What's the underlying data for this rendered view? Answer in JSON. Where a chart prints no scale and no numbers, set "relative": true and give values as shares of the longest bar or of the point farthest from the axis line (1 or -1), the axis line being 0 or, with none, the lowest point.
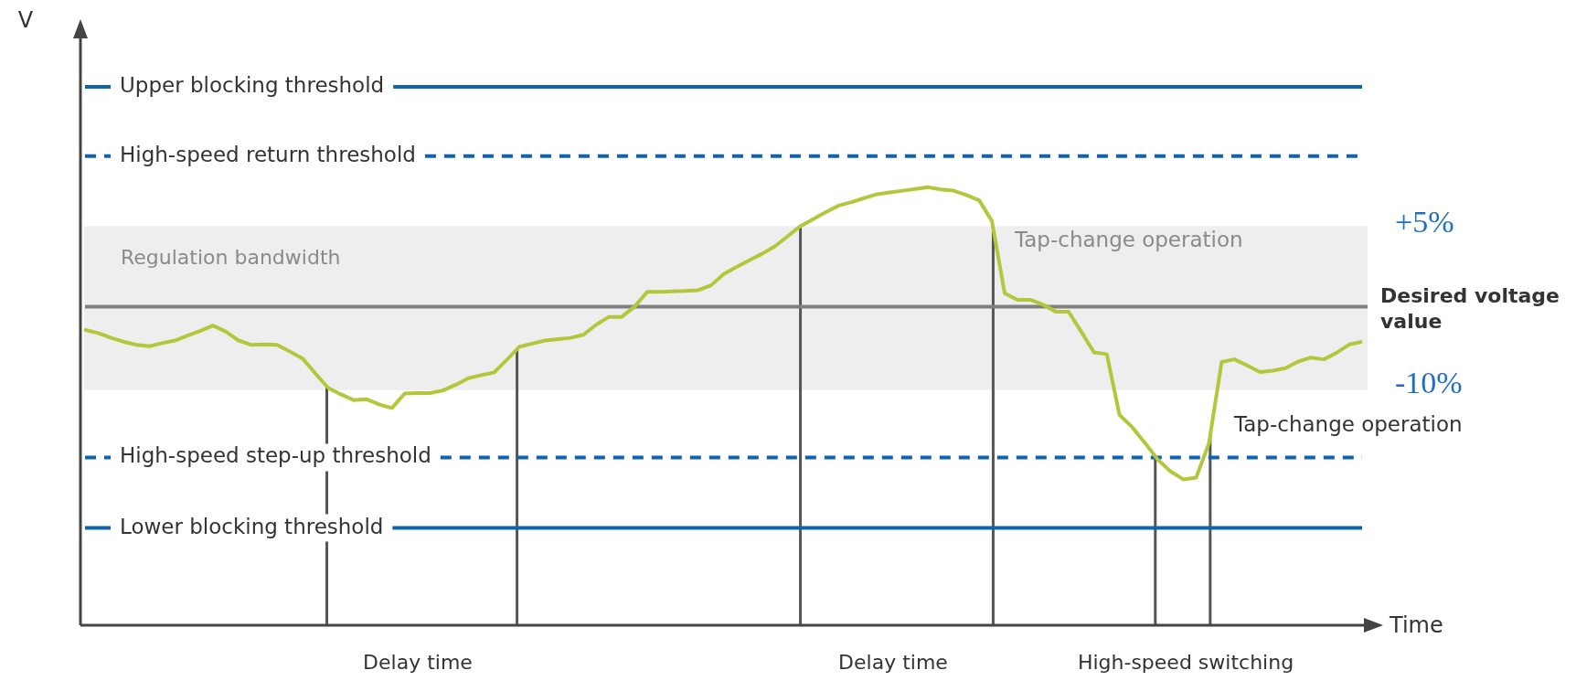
{
  "chart_data": {
    "type": "line",
    "relative": true,
    "xlabel": "Time",
    "tick_labels": false,
    "legend": false,
    "marker": "none",
    "categories": [
      null,
      null,
      null,
      null,
      null,
      null,
      null,
      null,
      null,
      null,
      null,
      null,
      null,
      null,
      null,
      null,
      null,
      null,
      null,
      null,
      null,
      null,
      null,
      null,
      null,
      null,
      null,
      null,
      null,
      null,
      null,
      null,
      null,
      null,
      null,
      null,
      null,
      null,
      null,
      null,
      null,
      null,
      null,
      null,
      null,
      null,
      null,
      null,
      null,
      null,
      null,
      null,
      null,
      null,
      null,
      null,
      null,
      null,
      null,
      null,
      null,
      null,
      null,
      null,
      null,
      null,
      null,
      null,
      null,
      null,
      null,
      null,
      null,
      null,
      null,
      null,
      null,
      null,
      null,
      null,
      null,
      null,
      null,
      null,
      null,
      null,
      null,
      null,
      null,
      null,
      null,
      null,
      null,
      null,
      null,
      null,
      null,
      null,
      null,
      null,
      null
    ],
    "series": [
      {
        "color": "#b4c73c",
        "values": [
          0.674,
          0.667,
          0.656,
          0.647,
          0.64,
          0.637,
          0.644,
          0.65,
          0.661,
          0.672,
          0.684,
          0.67,
          0.65,
          0.64,
          0.641,
          0.64,
          0.625,
          0.609,
          0.575,
          0.542,
          0.527,
          0.514,
          0.516,
          0.504,
          0.496,
          0.529,
          0.53,
          0.53,
          0.536,
          0.549,
          0.564,
          0.571,
          0.577,
          0.606,
          0.636,
          0.643,
          0.65,
          0.653,
          0.656,
          0.663,
          0.686,
          0.704,
          0.704,
          0.727,
          0.761,
          0.761,
          0.762,
          0.763,
          0.765,
          0.776,
          0.802,
          0.818,
          0.833,
          0.848,
          0.865,
          0.888,
          0.911,
          0.927,
          0.943,
          0.958,
          0.966,
          0.975,
          0.984,
          0.988,
          0.992,
          0.996,
          1,
          0.995,
          0.992,
          0.982,
          0.97,
          0.923,
          0.758,
          0.743,
          0.743,
          0.732,
          0.716,
          0.716,
          0.67,
          0.623,
          0.619,
          0.48,
          0.452,
          0.416,
          0.378,
          0.351,
          0.333,
          0.337,
          0.415,
          0.601,
          0.607,
          0.593,
          0.578,
          0.581,
          0.587,
          0.602,
          0.611,
          0.607,
          0.622,
          0.641,
          0.647
        ]
      }
    ],
    "ref_lines": [
      {
        "axis": "y",
        "value": 1.229,
        "label": "Upper blocking threshold",
        "color": "#0e64b0",
        "line_style": "solid"
      },
      {
        "axis": "y",
        "value": 1.071,
        "label": "High-speed return threshold",
        "color": "#0e64b0",
        "line_style": "dashed"
      },
      {
        "axis": "y",
        "value": 0.727,
        "label": "Desired voltage value",
        "color": "#808080",
        "line_style": "solid"
      },
      {
        "axis": "y",
        "value": 0.383,
        "label": "High-speed step-up threshold",
        "color": "#0e64b0",
        "line_style": "dashed"
      },
      {
        "axis": "y",
        "value": 0.222,
        "label": "Lower blocking threshold",
        "color": "#0e64b0",
        "line_style": "solid"
      }
    ],
    "bands": [
      {
        "axis": "y",
        "from": 0.537,
        "to": 0.911,
        "label": "Regulation bandwidth",
        "color": "#eeeeee"
      }
    ],
    "annotations": [
      "V",
      "+5%",
      "-10%",
      "Tap-change operation",
      "Tap-change operation",
      "Delay time",
      "Delay time",
      "High-speed switching"
    ]
  }
}
